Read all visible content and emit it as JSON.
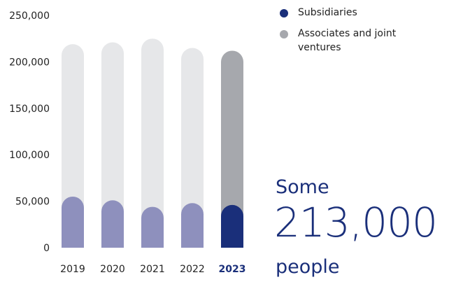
{
  "chart_data": {
    "type": "bar",
    "categories": [
      "2019",
      "2020",
      "2021",
      "2022",
      "2023"
    ],
    "highlighted_category": "2023",
    "series": [
      {
        "name": "Subsidiaries",
        "values": [
          55000,
          51000,
          44000,
          48000,
          46000
        ]
      },
      {
        "name": "Associates and joint ventures",
        "values": [
          219000,
          221000,
          225000,
          215000,
          212000
        ]
      }
    ],
    "ylim": [
      0,
      250000
    ],
    "yticks": [
      0,
      50000,
      100000,
      150000,
      200000,
      250000
    ],
    "ytick_labels": [
      "0",
      "50,000",
      "100,000",
      "150,000",
      "200,000",
      "250,000"
    ],
    "legend_position": "top-right",
    "grid": false
  },
  "legend": [
    {
      "label": "Subsidiaries",
      "color": "#1a2f7a"
    },
    {
      "label": "Associates and joint ventures",
      "color": "#a6a8ad"
    }
  ],
  "colors": {
    "subsidiaries_past": "#8e90bd",
    "subsidiaries_current": "#1a2f7a",
    "total_past": "#e6e7e9",
    "total_current": "#a6a8ad",
    "accent": "#1a2f7a"
  },
  "callout": {
    "prefix": "Some",
    "number": "213,000",
    "suffix": "people"
  }
}
